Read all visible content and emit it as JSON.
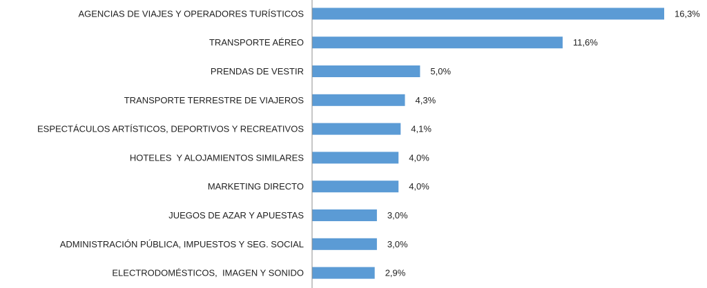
{
  "chart_data": {
    "type": "bar",
    "orientation": "horizontal",
    "categories": [
      "AGENCIAS DE VIAJES Y OPERADORES TURÍSTICOS",
      "TRANSPORTE AÉREO",
      "PRENDAS DE VESTIR",
      "TRANSPORTE TERRESTRE DE VIAJEROS",
      "ESPECTÁCULOS ARTÍSTICOS, DEPORTIVOS Y RECREATIVOS",
      "HOTELES  Y ALOJAMIENTOS SIMILARES",
      "MARKETING DIRECTO",
      "JUEGOS DE AZAR Y APUESTAS",
      "ADMINISTRACIÓN PÚBLICA, IMPUESTOS Y SEG. SOCIAL",
      "ELECTRODOMÉSTICOS,  IMAGEN Y SONIDO"
    ],
    "values": [
      16.3,
      11.6,
      5.0,
      4.3,
      4.1,
      4.0,
      4.0,
      3.0,
      3.0,
      2.9
    ],
    "value_labels": [
      "16,3%",
      "11,6%",
      "5,0%",
      "4,3%",
      "4,1%",
      "4,0%",
      "4,0%",
      "3,0%",
      "3,0%",
      "2,9%"
    ],
    "title": "",
    "xlabel": "",
    "ylabel": "",
    "xlim": [
      0,
      16.3
    ],
    "grid": false,
    "legend": "none",
    "bar_color": "#5b9bd5"
  }
}
